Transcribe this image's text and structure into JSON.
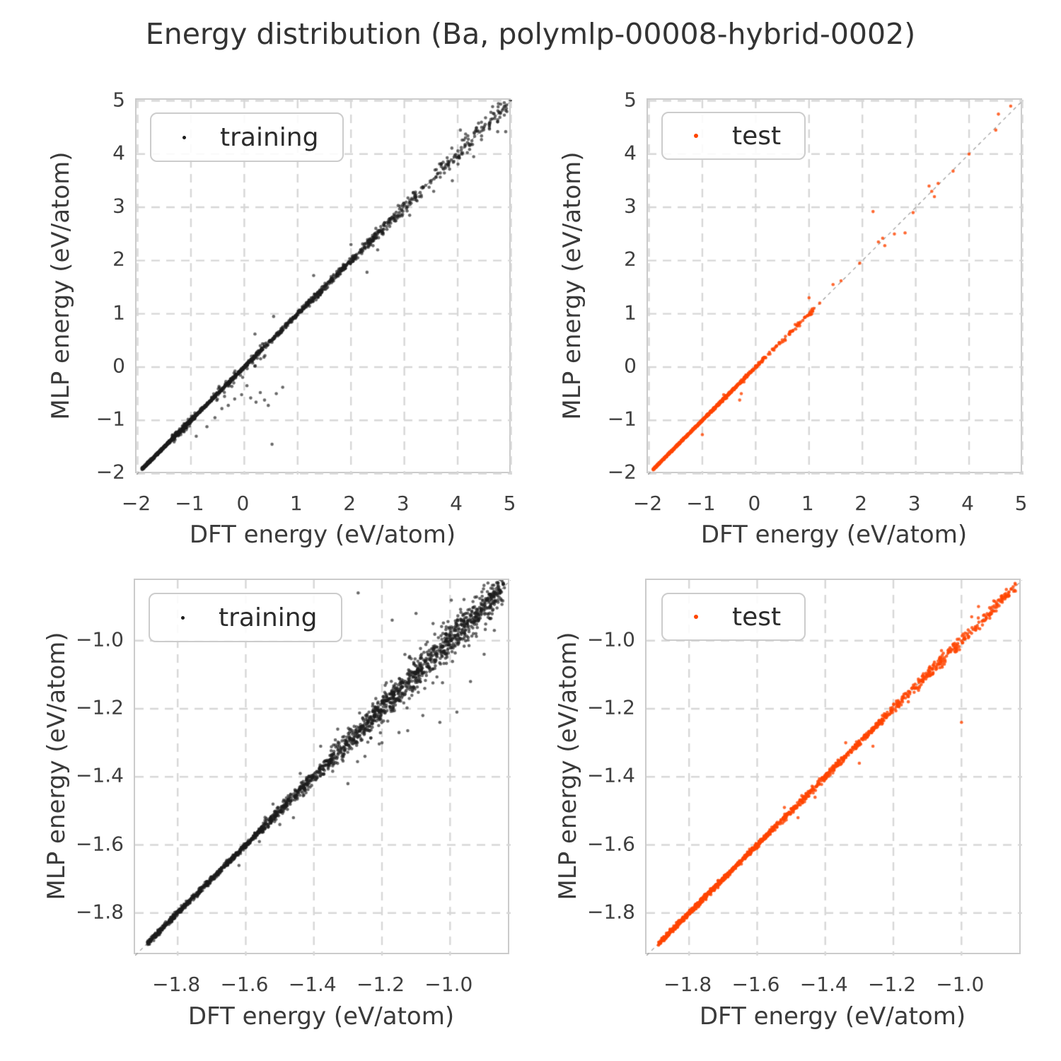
{
  "title": "Energy distribution (Ba, polymlp-00008-hybrid-0002)",
  "colors": {
    "training": "#1c1c1c",
    "test": "#ff4500",
    "grid": "#d7d7d7",
    "spine": "#cbcbcb",
    "identity_line": "#9a9a9a",
    "text": "#3a3a3a"
  },
  "axis_labels": {
    "x": "DFT energy (eV/atom)",
    "y": "MLP energy (eV/atom)"
  },
  "chart_data": [
    {
      "panel_id": "top-left",
      "type": "scatter",
      "series": "training",
      "legend_label": "training",
      "color_key": "training",
      "marker": {
        "radius": 2.3,
        "alpha": 0.65
      },
      "xlabel": "DFT energy (eV/atom)",
      "ylabel": "MLP energy (eV/atom)",
      "xlim": [
        -2.02,
        5.02
      ],
      "ylim": [
        -2.02,
        5.02
      ],
      "xticks": {
        "values": [
          -2,
          -1,
          0,
          1,
          2,
          3,
          4,
          5
        ],
        "labels": [
          "−2",
          "−1",
          "0",
          "1",
          "2",
          "3",
          "4",
          "5"
        ]
      },
      "yticks": {
        "values": [
          5,
          4,
          3,
          2,
          1,
          0,
          -1,
          -2
        ],
        "labels": [
          "5",
          "4",
          "3",
          "2",
          "1",
          "0",
          "−1",
          "−2"
        ]
      },
      "identity_line": true,
      "grid": "dashed",
      "seed": 11,
      "band_segments": [
        {
          "x0": -1.92,
          "x1": -1.0,
          "n": 520,
          "sigma": 0.012
        },
        {
          "x0": -1.35,
          "x1": -0.92,
          "n": 90,
          "sigma": 0.045
        },
        {
          "x0": -1.0,
          "x1": 0.2,
          "n": 330,
          "sigma": 0.015
        },
        {
          "x0": -0.6,
          "x1": 0.4,
          "n": 45,
          "sigma": 0.09,
          "bias": -0.06
        },
        {
          "x0": 0.2,
          "x1": 1.2,
          "n": 200,
          "sigma": 0.022
        },
        {
          "x0": 1.2,
          "x1": 2.1,
          "n": 190,
          "sigma": 0.035
        },
        {
          "x0": 2.1,
          "x1": 2.7,
          "n": 90,
          "sigma": 0.05
        },
        {
          "x0": 2.7,
          "x1": 3.3,
          "n": 70,
          "sigma": 0.06
        },
        {
          "x0": 3.3,
          "x1": 4.3,
          "n": 80,
          "sigma": 0.09
        },
        {
          "x0": 4.3,
          "x1": 5.0,
          "n": 60,
          "sigma": 0.1
        }
      ],
      "outliers": [
        [
          -0.9,
          -1.3
        ],
        [
          -0.7,
          -1.12
        ],
        [
          -0.55,
          -0.95
        ],
        [
          -0.42,
          -0.78
        ],
        [
          -0.3,
          -0.72
        ],
        [
          -0.18,
          -0.6
        ],
        [
          -0.05,
          -0.52
        ],
        [
          0.05,
          -0.35
        ],
        [
          0.12,
          -0.58
        ],
        [
          0.22,
          -0.66
        ],
        [
          0.3,
          -0.48
        ],
        [
          0.38,
          -0.62
        ],
        [
          0.45,
          -0.72
        ],
        [
          0.52,
          -1.45
        ],
        [
          0.6,
          -0.5
        ],
        [
          0.72,
          -0.38
        ],
        [
          0.2,
          0.62
        ],
        [
          0.55,
          0.95
        ],
        [
          1.3,
          1.72
        ],
        [
          2.3,
          1.78
        ],
        [
          2.0,
          2.3
        ],
        [
          2.5,
          2.2
        ],
        [
          3.1,
          2.85
        ],
        [
          3.55,
          3.3
        ],
        [
          3.9,
          3.5
        ],
        [
          4.05,
          4.45
        ],
        [
          4.3,
          3.95
        ],
        [
          4.75,
          4.42
        ],
        [
          4.9,
          4.42
        ]
      ]
    },
    {
      "panel_id": "top-right",
      "type": "scatter",
      "series": "test",
      "legend_label": "test",
      "color_key": "test",
      "marker": {
        "radius": 2.3,
        "alpha": 0.8
      },
      "xlabel": "DFT energy (eV/atom)",
      "ylabel": "MLP energy (eV/atom)",
      "xlim": [
        -2.02,
        5.02
      ],
      "ylim": [
        -2.02,
        5.02
      ],
      "xticks": {
        "values": [
          -2,
          -1,
          0,
          1,
          2,
          3,
          4,
          5
        ],
        "labels": [
          "−2",
          "−1",
          "0",
          "1",
          "2",
          "3",
          "4",
          "5"
        ]
      },
      "yticks": {
        "values": [
          5,
          4,
          3,
          2,
          1,
          0,
          -1,
          -2
        ],
        "labels": [
          "5",
          "4",
          "3",
          "2",
          "1",
          "0",
          "−1",
          "−2"
        ]
      },
      "identity_line": true,
      "grid": "dashed",
      "seed": 22,
      "band_segments": [
        {
          "x0": -1.92,
          "x1": -0.9,
          "n": 520,
          "sigma": 0.007
        },
        {
          "x0": -0.9,
          "x1": -0.35,
          "n": 200,
          "sigma": 0.012
        },
        {
          "x0": -0.35,
          "x1": 0.15,
          "n": 90,
          "sigma": 0.015
        },
        {
          "x0": 0.15,
          "x1": 1.1,
          "n": 60,
          "sigma": 0.02
        }
      ],
      "outliers": [
        [
          -1.0,
          -1.27
        ],
        [
          -0.6,
          -0.52
        ],
        [
          -0.3,
          -0.62
        ],
        [
          -0.27,
          -0.5
        ],
        [
          -0.22,
          -0.28
        ],
        [
          1.0,
          1.3
        ],
        [
          1.05,
          1.0
        ],
        [
          1.2,
          1.2
        ],
        [
          1.45,
          1.55
        ],
        [
          1.6,
          1.62
        ],
        [
          1.95,
          1.95
        ],
        [
          2.2,
          2.92
        ],
        [
          2.3,
          2.35
        ],
        [
          2.38,
          2.42
        ],
        [
          2.42,
          2.28
        ],
        [
          2.6,
          2.5
        ],
        [
          2.8,
          2.52
        ],
        [
          2.95,
          2.9
        ],
        [
          3.25,
          3.4
        ],
        [
          3.3,
          3.3
        ],
        [
          3.35,
          3.2
        ],
        [
          3.42,
          3.45
        ],
        [
          3.7,
          3.68
        ],
        [
          4.0,
          4.0
        ],
        [
          4.5,
          4.45
        ],
        [
          4.55,
          4.75
        ],
        [
          4.78,
          4.9
        ]
      ]
    },
    {
      "panel_id": "bottom-left",
      "type": "scatter",
      "series": "training",
      "legend_label": "training",
      "color_key": "training",
      "marker": {
        "radius": 2.3,
        "alpha": 0.65
      },
      "xlabel": "DFT energy (eV/atom)",
      "ylabel": "MLP energy (eV/atom)",
      "xlim": [
        -1.925,
        -0.822
      ],
      "ylim": [
        -1.925,
        -0.822
      ],
      "xticks": {
        "values": [
          -1.8,
          -1.6,
          -1.4,
          -1.2,
          -1.0
        ],
        "labels": [
          "−1.8",
          "−1.6",
          "−1.4",
          "−1.2",
          "−1.0"
        ]
      },
      "yticks": {
        "values": [
          -1.0,
          -1.2,
          -1.4,
          -1.6,
          -1.8
        ],
        "labels": [
          "−1.0",
          "−1.2",
          "−1.4",
          "−1.6",
          "−1.8"
        ]
      },
      "identity_line": true,
      "grid": "dashed",
      "seed": 33,
      "band_segments": [
        {
          "x0": -1.89,
          "x1": -1.55,
          "n": 650,
          "sigma": 0.004
        },
        {
          "x0": -1.55,
          "x1": -1.35,
          "n": 300,
          "sigma": 0.009
        },
        {
          "x0": -1.35,
          "x1": -1.15,
          "n": 350,
          "sigma": 0.018
        },
        {
          "x0": -1.15,
          "x1": -0.84,
          "n": 500,
          "sigma": 0.02
        },
        {
          "x0": -1.28,
          "x1": -0.9,
          "n": 100,
          "sigma": 0.05
        },
        {
          "x0": -1.05,
          "x1": -0.85,
          "n": 60,
          "sigma": 0.035
        }
      ],
      "outliers": [
        [
          -1.62,
          -1.66
        ],
        [
          -1.56,
          -1.59
        ],
        [
          -1.5,
          -1.54
        ],
        [
          -1.46,
          -1.52
        ],
        [
          -1.52,
          -1.48
        ],
        [
          -1.44,
          -1.39
        ],
        [
          -1.38,
          -1.31
        ],
        [
          -1.33,
          -1.26
        ],
        [
          -1.3,
          -1.42
        ],
        [
          -1.25,
          -1.34
        ],
        [
          -1.2,
          -1.3
        ],
        [
          -1.15,
          -1.27
        ],
        [
          -1.27,
          -0.86
        ],
        [
          -1.17,
          -0.94
        ],
        [
          -1.12,
          -1.05
        ],
        [
          -1.08,
          -1.22
        ],
        [
          -1.03,
          -1.24
        ],
        [
          -0.98,
          -1.21
        ],
        [
          -0.94,
          -1.12
        ],
        [
          -0.9,
          -1.04
        ],
        [
          -0.87,
          -0.97
        ],
        [
          -1.1,
          -0.92
        ],
        [
          -1.05,
          -0.95
        ]
      ]
    },
    {
      "panel_id": "bottom-right",
      "type": "scatter",
      "series": "test",
      "legend_label": "test",
      "color_key": "test",
      "marker": {
        "radius": 2.3,
        "alpha": 0.8
      },
      "xlabel": "DFT energy (eV/atom)",
      "ylabel": "MLP energy (eV/atom)",
      "xlim": [
        -1.925,
        -0.822
      ],
      "ylim": [
        -1.925,
        -0.822
      ],
      "xticks": {
        "values": [
          -1.8,
          -1.6,
          -1.4,
          -1.2,
          -1.0
        ],
        "labels": [
          "−1.8",
          "−1.6",
          "−1.4",
          "−1.2",
          "−1.0"
        ]
      },
      "yticks": {
        "values": [
          -1.0,
          -1.2,
          -1.4,
          -1.6,
          -1.8
        ],
        "labels": [
          "−1.0",
          "−1.2",
          "−1.4",
          "−1.6",
          "−1.8"
        ]
      },
      "identity_line": true,
      "grid": "dashed",
      "seed": 44,
      "band_segments": [
        {
          "x0": -1.89,
          "x1": -1.55,
          "n": 750,
          "sigma": 0.0035
        },
        {
          "x0": -1.55,
          "x1": -1.2,
          "n": 380,
          "sigma": 0.005
        },
        {
          "x0": -1.2,
          "x1": -0.84,
          "n": 260,
          "sigma": 0.009
        }
      ],
      "outliers": [
        [
          -1.0,
          -1.24
        ],
        [
          -1.26,
          -1.31
        ],
        [
          -1.3,
          -1.36
        ],
        [
          -1.34,
          -1.3
        ],
        [
          -1.43,
          -1.46
        ],
        [
          -1.48,
          -1.52
        ],
        [
          -0.97,
          -0.93
        ],
        [
          -0.95,
          -0.9
        ],
        [
          -1.52,
          -1.49
        ]
      ]
    }
  ]
}
